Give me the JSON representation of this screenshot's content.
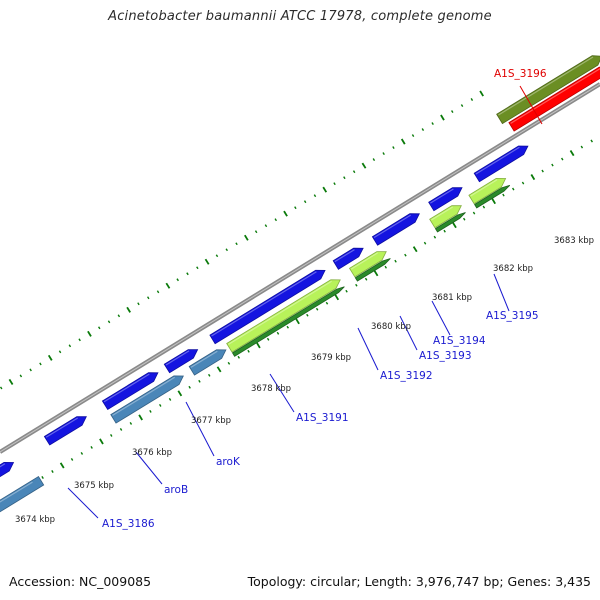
{
  "title": "Acinetobacter baumannii ATCC 17978, complete genome",
  "footer": {
    "accession": "Accession: NC_009085",
    "stats": "Topology: circular; Length: 3,976,747 bp; Genes: 3,435"
  },
  "colors": {
    "backbone": "#8a8a8a",
    "tick": "#0a7a0a",
    "forward_gene": "#1414e0",
    "reverse_gene": "#4a86b8",
    "cds_yellow_green": "#b8f25a",
    "cds_dark_green": "#2a8a2a",
    "olive": "#6b8e23",
    "highlight": "#ff0000",
    "gene_label": "#1a1ad0",
    "highlight_label": "#e00000"
  },
  "tick_labels": [
    "3674 kbp",
    "3675 kbp",
    "3676 kbp",
    "3677 kbp",
    "3678 kbp",
    "3679 kbp",
    "3680 kbp",
    "3681 kbp",
    "3682 kbp",
    "3683 kbp"
  ],
  "gene_labels": [
    {
      "name": "A1S_3186",
      "highlight": false
    },
    {
      "name": "aroB",
      "highlight": false
    },
    {
      "name": "aroK",
      "highlight": false
    },
    {
      "name": "A1S_3191",
      "highlight": false
    },
    {
      "name": "A1S_3192",
      "highlight": false
    },
    {
      "name": "A1S_3193",
      "highlight": false
    },
    {
      "name": "A1S_3194",
      "highlight": false
    },
    {
      "name": "A1S_3195",
      "highlight": false
    },
    {
      "name": "A1S_3196",
      "highlight": true
    }
  ]
}
